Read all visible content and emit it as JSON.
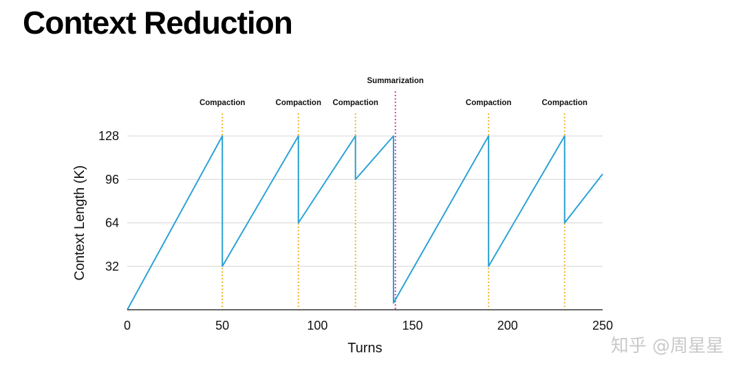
{
  "page": {
    "title": "Context Reduction"
  },
  "watermark": "知乎 @周星星",
  "colors": {
    "line": "#2aa2d6",
    "grid": "#d4d4d4",
    "axis": "#333333",
    "compaction": "#f0b429",
    "summarization": "#d2409a"
  },
  "chart_data": {
    "type": "line",
    "title": "Context Reduction",
    "xlabel": "Turns",
    "ylabel": "Context Length (K)",
    "xlim": [
      0,
      250
    ],
    "ylim": [
      0,
      128
    ],
    "x_ticks": [
      0,
      50,
      100,
      150,
      200,
      250
    ],
    "y_ticks": [
      32,
      64,
      96,
      128
    ],
    "grid": true,
    "series": [
      {
        "name": "Context Length",
        "x": [
          0,
          50,
          50,
          90,
          90,
          120,
          120,
          140,
          140,
          190,
          190,
          230,
          230,
          250
        ],
        "y": [
          0,
          128,
          32,
          128,
          64,
          128,
          96,
          128,
          5,
          128,
          32,
          128,
          64,
          100
        ]
      }
    ],
    "events": [
      {
        "type": "compaction",
        "label": "Compaction",
        "x": 50
      },
      {
        "type": "compaction",
        "label": "Compaction",
        "x": 90
      },
      {
        "type": "compaction",
        "label": "Compaction",
        "x": 120
      },
      {
        "type": "summarization",
        "label": "Summarization",
        "x": 141
      },
      {
        "type": "compaction",
        "label": "Compaction",
        "x": 190
      },
      {
        "type": "compaction",
        "label": "Compaction",
        "x": 230
      }
    ]
  }
}
